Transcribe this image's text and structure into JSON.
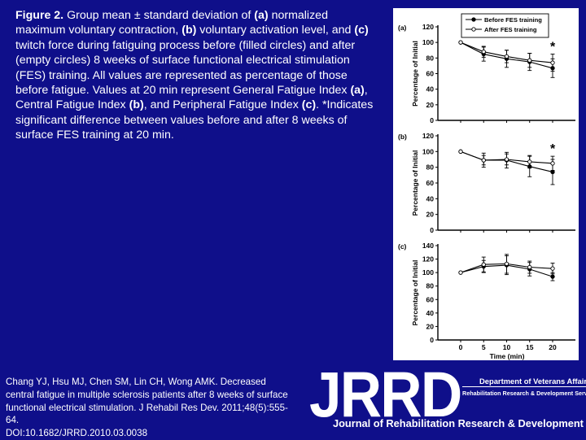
{
  "caption": [
    {
      "text": "Figure 2.",
      "bold": true
    },
    {
      "text": " Group mean ± standard deviation of ",
      "bold": false
    },
    {
      "text": "(a)",
      "bold": true
    },
    {
      "text": " normalized maximum voluntary contraction, ",
      "bold": false
    },
    {
      "text": "(b)",
      "bold": true
    },
    {
      "text": " voluntary activation level, and ",
      "bold": false
    },
    {
      "text": "(c)",
      "bold": true
    },
    {
      "text": " twitch force during fatiguing process before (filled circles) and after (empty circles) 8 weeks of surface functional electrical stimulation (FES) training. All values are represented as percentage of those before fatigue. Values at 20 min represent General Fatigue Index ",
      "bold": false
    },
    {
      "text": "(a)",
      "bold": true
    },
    {
      "text": ", Central Fatigue Index ",
      "bold": false
    },
    {
      "text": "(b)",
      "bold": true
    },
    {
      "text": ", and Peripheral Fatigue Index ",
      "bold": false
    },
    {
      "text": "(c)",
      "bold": true
    },
    {
      "text": ". *Indicates significant difference between values before and after 8 weeks of surface FES training at 20 min.",
      "bold": false
    }
  ],
  "citation": {
    "line1": "Chang YJ, Hsu MJ, Chen SM, Lin CH, Wong AMK. Decreased",
    "line2": "central fatigue in multiple sclerosis patients after 8 weeks of surface",
    "line3": "functional electrical stimulation. J Rehabil Res Dev. 2011;48(5):555-",
    "line4": "64.",
    "line5": "DOI:10.1682/JRRD.2010.03.0038"
  },
  "logo": {
    "letters": "JRRD",
    "va": "Department of Veterans Affairs",
    "rrd": "Rehabilitation Research & Development Service",
    "journal": "Journal of Rehabilitation Research & Development"
  },
  "colors": {
    "background": "#0F0F8A",
    "figure_bg": "#FFFFFF",
    "ink": "#000000"
  },
  "chart_data": [
    {
      "type": "line",
      "panel_label": "(a)",
      "ylabel": "Percentage of Initial",
      "ylim": [
        0,
        120
      ],
      "yticks": [
        0,
        20,
        40,
        60,
        80,
        100,
        120
      ],
      "x": [
        0,
        5,
        10,
        15,
        20
      ],
      "legend": {
        "position": "top-right"
      },
      "annotation": "*",
      "series": [
        {
          "name": "Before FES training",
          "marker": "filled",
          "values": [
            100,
            85,
            79,
            75,
            67
          ],
          "error": [
            0,
            9,
            11,
            11,
            12
          ]
        },
        {
          "name": "After FES training",
          "marker": "empty",
          "values": [
            100,
            88,
            82,
            77,
            74
          ],
          "error": [
            0,
            7,
            8,
            9,
            11
          ]
        }
      ]
    },
    {
      "type": "line",
      "panel_label": "(b)",
      "ylabel": "Percentage of Initial",
      "ylim": [
        0,
        120
      ],
      "yticks": [
        0,
        20,
        40,
        60,
        80,
        100,
        120
      ],
      "x": [
        0,
        5,
        10,
        15,
        20
      ],
      "annotation": "*",
      "series": [
        {
          "name": "Before FES training",
          "marker": "filled",
          "values": [
            100,
            89,
            89,
            81,
            74
          ],
          "error": [
            0,
            9,
            10,
            13,
            16
          ]
        },
        {
          "name": "After FES training",
          "marker": "empty",
          "values": [
            100,
            89,
            90,
            87,
            85
          ],
          "error": [
            0,
            6,
            7,
            8,
            9
          ]
        }
      ]
    },
    {
      "type": "line",
      "panel_label": "(c)",
      "ylabel": "Percentage of Initial",
      "xlabel": "Time (min)",
      "ylim": [
        0,
        140
      ],
      "yticks": [
        0,
        20,
        40,
        60,
        80,
        100,
        120,
        140
      ],
      "x": [
        0,
        5,
        10,
        15,
        20
      ],
      "xticks": [
        0,
        5,
        10,
        15,
        20
      ],
      "series": [
        {
          "name": "Before FES training",
          "marker": "filled",
          "values": [
            100,
            109,
            111,
            105,
            94
          ],
          "error": [
            0,
            9,
            14,
            10,
            6
          ]
        },
        {
          "name": "After FES training",
          "marker": "empty",
          "values": [
            100,
            112,
            113,
            108,
            106
          ],
          "error": [
            0,
            11,
            14,
            9,
            8
          ]
        }
      ]
    }
  ]
}
